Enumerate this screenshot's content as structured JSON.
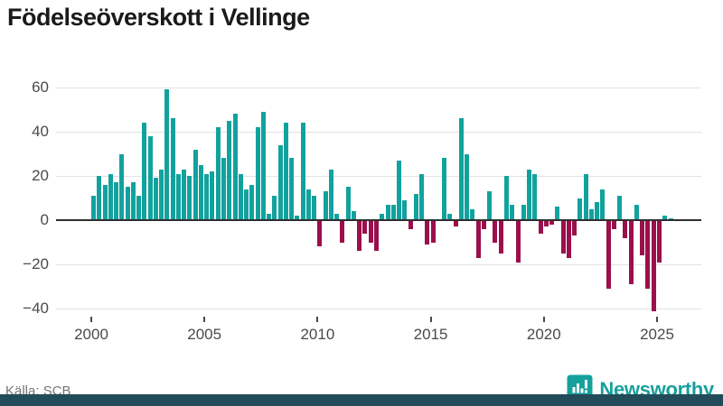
{
  "title": "Födelseöverskott i Vellinge",
  "source": "Källa: SCB",
  "brand": {
    "name": "Newsworthy",
    "color": "#16a09c"
  },
  "colors": {
    "positive_bar": "#12a29e",
    "negative_bar": "#9b0f4c",
    "gridline": "#e2e2e2",
    "axis_line": "#2f2f2f",
    "bottom_band": "#234c5a",
    "tick_text": "#4a4a4a"
  },
  "chart_data": {
    "type": "bar",
    "title": "Födelseöverskott i Vellinge",
    "frequency": "quarterly",
    "start_period": "2000-Q1",
    "end_period": "2025-Q3",
    "grid": "horizontal",
    "ylim": [
      -45,
      65
    ],
    "y_ticks": [
      {
        "value": 60,
        "label": "60"
      },
      {
        "value": 40,
        "label": "40"
      },
      {
        "value": 20,
        "label": "20"
      },
      {
        "value": 0,
        "label": "0"
      },
      {
        "value": -20,
        "label": "−20"
      },
      {
        "value": -40,
        "label": "−40"
      }
    ],
    "x_ticks": [
      {
        "year_offset": 0,
        "label": "2000"
      },
      {
        "year_offset": 5,
        "label": "2005"
      },
      {
        "year_offset": 10,
        "label": "2010"
      },
      {
        "year_offset": 15,
        "label": "2015"
      },
      {
        "year_offset": 20,
        "label": "2020"
      },
      {
        "year_offset": 25,
        "label": "2025"
      }
    ],
    "values": [
      11,
      20,
      16,
      21,
      17,
      30,
      15,
      17,
      11,
      44,
      38,
      19,
      23,
      59,
      46,
      21,
      23,
      20,
      32,
      25,
      21,
      22,
      42,
      28,
      45,
      48,
      21,
      14,
      16,
      42,
      49,
      3,
      11,
      34,
      44,
      28,
      2,
      44,
      14,
      11,
      -12,
      13,
      23,
      3,
      -10,
      15,
      4,
      -14,
      -6,
      -10,
      -14,
      3,
      7,
      7,
      27,
      9,
      -4,
      12,
      21,
      -11,
      -10,
      0,
      28,
      3,
      -3,
      46,
      30,
      5,
      -17,
      -4,
      13,
      -10,
      -15,
      20,
      7,
      -19,
      7,
      23,
      21,
      -6,
      -3,
      -2,
      6,
      -15,
      -17,
      -7,
      10,
      21,
      5,
      8,
      14,
      -31,
      -4,
      11,
      -8,
      -29,
      7,
      -16,
      -31,
      -41,
      -19,
      2,
      1
    ]
  }
}
